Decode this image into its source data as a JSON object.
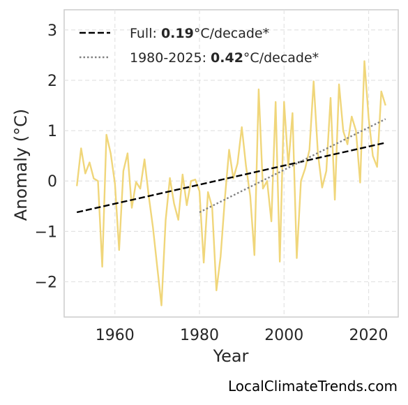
{
  "watermark": "LocalClimateTrends.com",
  "chart_data": {
    "type": "line",
    "xlabel": "Year",
    "ylabel": "Anomaly (°C)",
    "xlim": [
      1948,
      2027
    ],
    "ylim": [
      -2.7,
      3.4
    ],
    "xticks": [
      1960,
      1980,
      2000,
      2020
    ],
    "yticks": [
      -2,
      -1,
      0,
      1,
      2,
      3
    ],
    "ytick_labels": [
      "−2",
      "−1",
      "0",
      "1",
      "2",
      "3"
    ],
    "grid": true,
    "legend_position": "top-left",
    "series": [
      {
        "style": "solid",
        "color": "#f0d67a",
        "x": [
          1951,
          1952,
          1953,
          1954,
          1955,
          1956,
          1957,
          1958,
          1959,
          1960,
          1961,
          1962,
          1963,
          1964,
          1965,
          1966,
          1967,
          1968,
          1969,
          1970,
          1971,
          1972,
          1973,
          1974,
          1975,
          1976,
          1977,
          1978,
          1979,
          1980,
          1981,
          1982,
          1983,
          1984,
          1985,
          1986,
          1987,
          1988,
          1989,
          1990,
          1991,
          1992,
          1993,
          1994,
          1995,
          1996,
          1997,
          1998,
          1999,
          2000,
          2001,
          2002,
          2003,
          2004,
          2005,
          2006,
          2007,
          2008,
          2009,
          2010,
          2011,
          2012,
          2013,
          2014,
          2015,
          2016,
          2017,
          2018,
          2019,
          2020,
          2021,
          2022,
          2023,
          2024
        ],
        "y": [
          -0.1,
          0.65,
          0.15,
          0.37,
          0.05,
          0.0,
          -1.7,
          0.92,
          0.55,
          -0.05,
          -1.37,
          0.2,
          0.55,
          -0.53,
          -0.02,
          -0.15,
          0.43,
          -0.3,
          -0.92,
          -1.7,
          -2.47,
          -0.78,
          0.06,
          -0.45,
          -0.77,
          0.13,
          -0.48,
          0.0,
          0.03,
          -0.2,
          -1.62,
          -0.22,
          -0.52,
          -2.17,
          -1.5,
          -0.35,
          0.62,
          0.05,
          0.35,
          1.07,
          0.3,
          -0.3,
          -1.47,
          1.82,
          -0.15,
          0.0,
          -0.8,
          1.57,
          -1.6,
          1.57,
          0.3,
          1.35,
          -1.53,
          0.0,
          0.25,
          0.62,
          1.98,
          0.55,
          -0.13,
          0.2,
          1.65,
          -0.37,
          1.92,
          0.99,
          0.73,
          1.28,
          1.0,
          -0.03,
          2.38,
          1.25,
          0.5,
          0.28,
          1.78,
          1.5
        ]
      },
      {
        "name": "Full",
        "style": "dashed",
        "color": "#000000",
        "x": [
          1951,
          2024
        ],
        "y": [
          -0.62,
          0.76
        ],
        "legend_rate": "0.19",
        "legend_unit": "°C/decade*"
      },
      {
        "name": "1980-2025",
        "style": "dotted",
        "color": "#808080",
        "x": [
          1980,
          2024
        ],
        "y": [
          -0.62,
          1.23
        ],
        "legend_rate": "0.42",
        "legend_unit": "°C/decade*"
      }
    ]
  }
}
